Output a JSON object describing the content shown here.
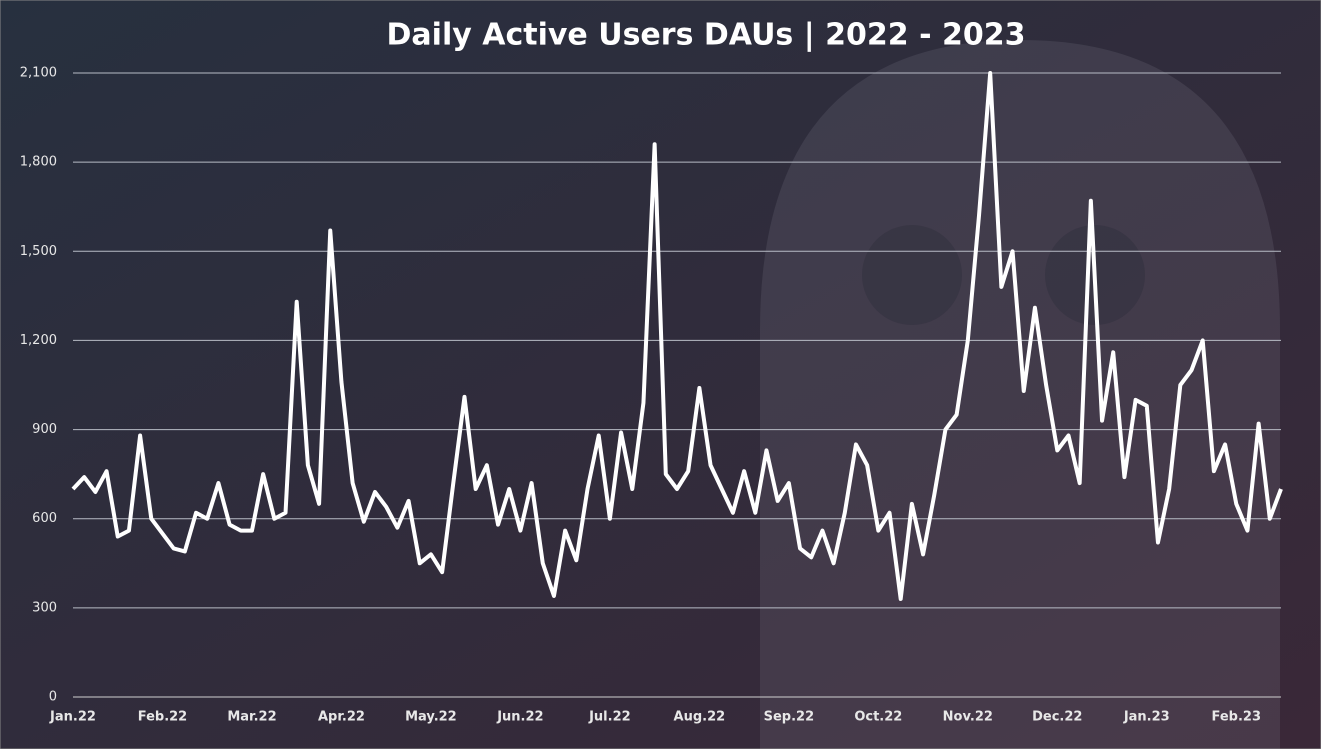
{
  "chart_data": {
    "type": "line",
    "title": "Daily Active Users DAUs | 2022 - 2023",
    "categories": [
      "Jan.22",
      null,
      null,
      null,
      null,
      null,
      null,
      null,
      "Feb.22",
      null,
      null,
      null,
      null,
      null,
      null,
      null,
      "Mar.22",
      null,
      null,
      null,
      null,
      null,
      null,
      null,
      "Apr.22",
      null,
      null,
      null,
      null,
      null,
      null,
      null,
      "May.22",
      null,
      null,
      null,
      null,
      null,
      null,
      null,
      "Jun.22",
      null,
      null,
      null,
      null,
      null,
      null,
      null,
      "Jul.22",
      null,
      null,
      null,
      null,
      null,
      null,
      null,
      "Aug.22",
      null,
      null,
      null,
      null,
      null,
      null,
      null,
      "Sep.22",
      null,
      null,
      null,
      null,
      null,
      null,
      null,
      "Oct.22",
      null,
      null,
      null,
      null,
      null,
      null,
      null,
      "Nov.22",
      null,
      null,
      null,
      null,
      null,
      null,
      null,
      "Dec.22",
      null,
      null,
      null,
      null,
      null,
      null,
      null,
      "Jan.23",
      null,
      null,
      null,
      null,
      null,
      null,
      null,
      "Feb.23",
      null,
      null,
      null,
      null
    ],
    "values": [
      700,
      740,
      690,
      760,
      540,
      560,
      880,
      600,
      550,
      500,
      490,
      620,
      600,
      720,
      580,
      560,
      560,
      750,
      600,
      620,
      1330,
      780,
      650,
      1570,
      1060,
      720,
      590,
      690,
      640,
      570,
      660,
      450,
      480,
      420,
      720,
      1010,
      700,
      780,
      580,
      700,
      560,
      720,
      450,
      340,
      560,
      460,
      700,
      880,
      600,
      890,
      700,
      990,
      1860,
      750,
      700,
      760,
      1040,
      780,
      700,
      620,
      760,
      620,
      830,
      660,
      720,
      500,
      470,
      560,
      450,
      620,
      850,
      780,
      560,
      620,
      330,
      650,
      480,
      680,
      900,
      950,
      1200,
      1620,
      2100,
      1380,
      1500,
      1030,
      1310,
      1050,
      830,
      880,
      720,
      1670,
      930,
      1160,
      740,
      1000,
      980,
      520,
      700,
      1050,
      1100,
      1200,
      760,
      850,
      650,
      560,
      920,
      600,
      700
    ],
    "color": "#ffffff",
    "ylim": [
      0,
      2100
    ],
    "yticks": [
      0,
      300,
      600,
      900,
      {
        "value": 1200,
        "label": "1,200"
      },
      {
        "value": 1500,
        "label": "1,500"
      },
      {
        "value": 1800,
        "label": "1,800"
      },
      {
        "value": 2100,
        "label": "2,100"
      }
    ],
    "grid": true
  }
}
